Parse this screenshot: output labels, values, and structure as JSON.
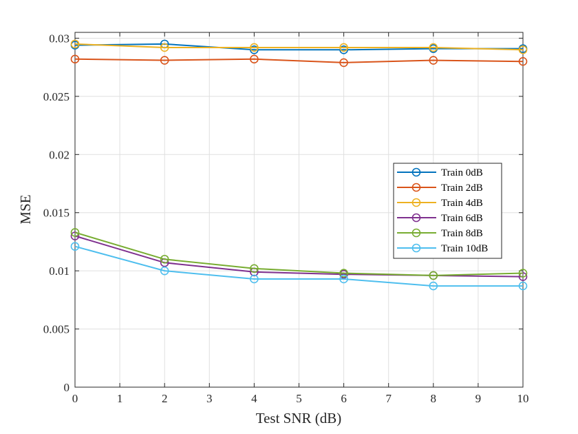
{
  "chart_data": {
    "type": "line",
    "title": "",
    "xlabel": "Test SNR (dB)",
    "ylabel": "MSE",
    "xlim": [
      0,
      10
    ],
    "ylim": [
      0,
      0.0305
    ],
    "xticks": [
      0,
      1,
      2,
      3,
      4,
      5,
      6,
      7,
      8,
      9,
      10
    ],
    "xtick_labels": [
      "0",
      "1",
      "2",
      "3",
      "4",
      "5",
      "6",
      "7",
      "8",
      "9",
      "10"
    ],
    "yticks": [
      0,
      0.005,
      0.01,
      0.015,
      0.02,
      0.025,
      0.03
    ],
    "ytick_labels": [
      "0",
      "0.005",
      "0.01",
      "0.015",
      "0.02",
      "0.025",
      "0.03"
    ],
    "grid": true,
    "legend_position": "middle-right",
    "x": [
      0,
      2,
      4,
      6,
      8,
      10
    ],
    "series": [
      {
        "name": "Train 0dB",
        "color": "#0072BD",
        "values": [
          0.0294,
          0.0295,
          0.029,
          0.029,
          0.0291,
          0.0291
        ]
      },
      {
        "name": "Train 2dB",
        "color": "#D95319",
        "values": [
          0.0282,
          0.0281,
          0.0282,
          0.0279,
          0.0281,
          0.028
        ]
      },
      {
        "name": "Train 4dB",
        "color": "#EDB120",
        "values": [
          0.0295,
          0.0292,
          0.0292,
          0.0292,
          0.0292,
          0.029
        ]
      },
      {
        "name": "Train 6dB",
        "color": "#7E2F8E",
        "values": [
          0.013,
          0.0107,
          0.0099,
          0.0097,
          0.0096,
          0.0095
        ]
      },
      {
        "name": "Train 8dB",
        "color": "#77AC30",
        "values": [
          0.0133,
          0.011,
          0.0102,
          0.0098,
          0.0096,
          0.0098
        ]
      },
      {
        "name": "Train 10dB",
        "color": "#4DBEEE",
        "values": [
          0.0121,
          0.01,
          0.0093,
          0.0093,
          0.0087,
          0.0087
        ]
      }
    ]
  }
}
